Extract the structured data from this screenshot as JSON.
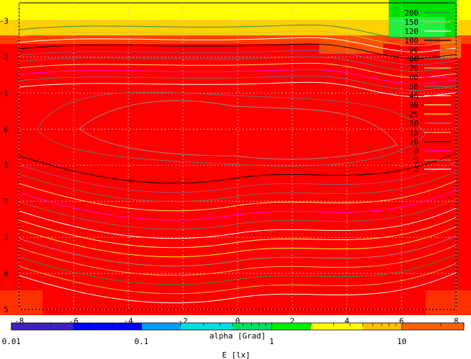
{
  "chart_data": {
    "type": "heatmap",
    "title": "",
    "x_axis": {
      "range": [
        -8,
        8
      ],
      "ticks": [
        "-8",
        "-6",
        "-4",
        "-2",
        "0",
        "2",
        "4",
        "6",
        "8"
      ]
    },
    "y_axis": {
      "range": [
        -3.5,
        5
      ],
      "ticks": [
        "-3",
        "-2",
        "-1",
        "0",
        "1",
        "2",
        "3",
        "4",
        "5"
      ]
    },
    "grid": true,
    "field": "E [lx] (illuminance), log color scale",
    "contour_legend": {
      "placement": "top-right",
      "levels": [
        "200",
        "150",
        "120",
        "100",
        "90",
        "80",
        "70",
        "60",
        "50",
        "40",
        "30",
        "25",
        "20",
        "15",
        "10",
        "8",
        "5",
        "2"
      ],
      "colors": [
        "#2e8b57",
        "#ccc04a",
        "#ffffff",
        "#000000",
        "#a05080",
        "#707070",
        "#ffe080",
        "#ff00ff",
        "#707070",
        "#ffffff",
        "#ffff80",
        "#ffff00",
        "#909090",
        "#ffb060",
        "#000000",
        "#ff00ff",
        "#909090",
        "#ffffff"
      ]
    },
    "colorbar": {
      "scale": "log",
      "range": [
        0.01,
        30
      ],
      "ticks": [
        "0.01",
        "0.1",
        "1",
        "10"
      ],
      "label_alpha": "alpha [Grad]",
      "label_E": "E [lx]"
    },
    "regions": [
      {
        "name": "top band",
        "value_class": "yellow",
        "color": "#ffff00"
      },
      {
        "name": "top-right corner",
        "value_class": "green",
        "color": "#00e000"
      },
      {
        "name": "main field",
        "value_class": "red",
        "color": "#ff0000"
      }
    ]
  }
}
